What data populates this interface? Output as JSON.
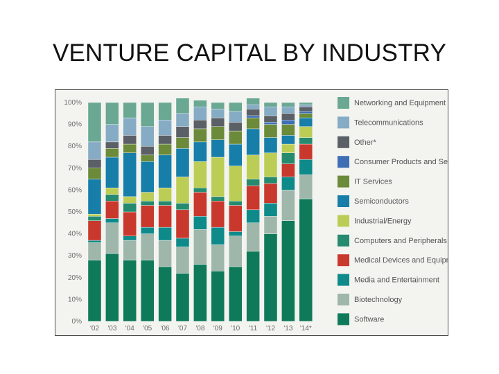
{
  "page": {
    "title": "VENTURE CAPITAL BY INDUSTRY"
  },
  "chart_data": {
    "type": "bar",
    "stacked": true,
    "title": "VENTURE CAPITAL BY INDUSTRY",
    "xlabel": "",
    "ylabel": "",
    "ylim": [
      0,
      100
    ],
    "yticks": [
      "0%",
      "10%",
      "20%",
      "30%",
      "40%",
      "50%",
      "60%",
      "70%",
      "80%",
      "90%",
      "100%"
    ],
    "categories": [
      "'02",
      "'03",
      "'04",
      "'05",
      "'06",
      "'07",
      "'08",
      "'09",
      "'10",
      "'11",
      "'12",
      "'13",
      "'14*"
    ],
    "series": [
      {
        "name": "Software",
        "color": "#0f7a5a",
        "values": [
          28,
          31,
          28,
          28,
          25,
          22,
          26,
          23,
          25,
          32,
          40,
          46,
          56
        ]
      },
      {
        "name": "Biotechnology",
        "color": "#9fb7aa",
        "values": [
          8,
          14,
          9,
          12,
          12,
          12,
          16,
          12,
          14,
          13,
          8,
          14,
          11
        ]
      },
      {
        "name": "Media and Entertainment",
        "color": "#0f8a8a",
        "values": [
          1,
          2,
          2,
          3,
          6,
          4,
          6,
          8,
          2,
          6,
          6,
          6,
          7
        ]
      },
      {
        "name": "Medical Devices and Equipment",
        "color": "#c9382c",
        "values": [
          9,
          8,
          11,
          10,
          10,
          13,
          11,
          12,
          12,
          11,
          9,
          6,
          7
        ]
      },
      {
        "name": "Computers and Peripherals",
        "color": "#258a6e",
        "values": [
          2,
          3,
          4,
          2,
          2,
          3,
          2,
          2,
          2,
          3,
          3,
          5,
          3
        ]
      },
      {
        "name": "Industrial/Energy",
        "color": "#bccd56",
        "values": [
          1,
          3,
          3,
          4,
          6,
          12,
          12,
          18,
          16,
          11,
          11,
          4,
          5
        ]
      },
      {
        "name": "Semiconductors",
        "color": "#167ea8",
        "values": [
          16,
          14,
          20,
          14,
          15,
          13,
          9,
          8,
          10,
          12,
          7,
          4,
          4
        ]
      },
      {
        "name": "IT Services",
        "color": "#6b8a3a",
        "values": [
          5,
          4,
          4,
          3,
          5,
          5,
          6,
          6,
          6,
          5,
          6,
          5,
          2
        ]
      },
      {
        "name": "Consumer Products and Services",
        "color": "#3e6fb5",
        "values": [
          0,
          0,
          0,
          0,
          0,
          0,
          0,
          0,
          0,
          1,
          1,
          2,
          1
        ]
      },
      {
        "name": "Other*",
        "color": "#5b5f66",
        "values": [
          4,
          3,
          4,
          4,
          4,
          5,
          4,
          4,
          4,
          3,
          3,
          3,
          2
        ]
      },
      {
        "name": "Telecommunications",
        "color": "#86abc4",
        "values": [
          8,
          8,
          8,
          9,
          7,
          6,
          6,
          4,
          5,
          2,
          4,
          3,
          1
        ]
      },
      {
        "name": "Networking and Equipment",
        "color": "#6aa893",
        "values": [
          18,
          10,
          7,
          11,
          8,
          7,
          3,
          3,
          4,
          3,
          2,
          2,
          1
        ]
      }
    ],
    "legend_order": [
      "Networking and Equipment",
      "Telecommunications",
      "Other*",
      "Consumer Products and Services",
      "IT Services",
      "Semiconductors",
      "Industrial/Energy",
      "Computers and Peripherals",
      "Medical Devices and Equipment",
      "Media and Entertainment",
      "Biotechnology",
      "Software"
    ]
  }
}
